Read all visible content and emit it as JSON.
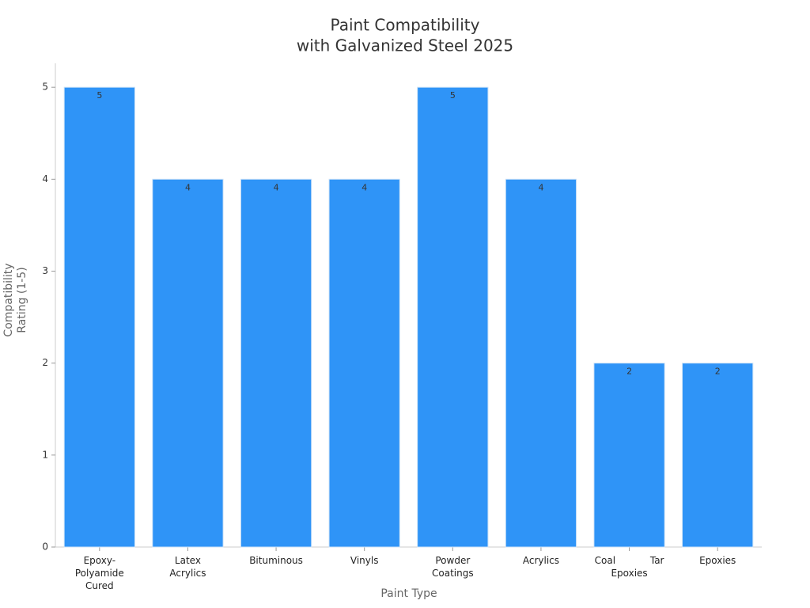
{
  "chart_data": {
    "type": "bar",
    "title": [
      "Paint Compatibility",
      "with Galvanized Steel 2025"
    ],
    "x_label": "Paint Type",
    "y_label": "Compatibility Rating (1-5)",
    "categories": [
      "Epoxy-Polyamide Cured",
      "Latex Acrylics",
      "Bituminous",
      "Vinyls",
      "Powder Coatings",
      "Acrylics",
      "Coal Tar Epoxies",
      "Epoxies"
    ],
    "values": [
      5,
      4,
      4,
      4,
      5,
      4,
      2,
      2
    ],
    "color": "#2f94f7",
    "ylim": [
      0,
      5.26
    ],
    "yticks": [
      0,
      1,
      2,
      3,
      4,
      5
    ],
    "grid": false
  }
}
